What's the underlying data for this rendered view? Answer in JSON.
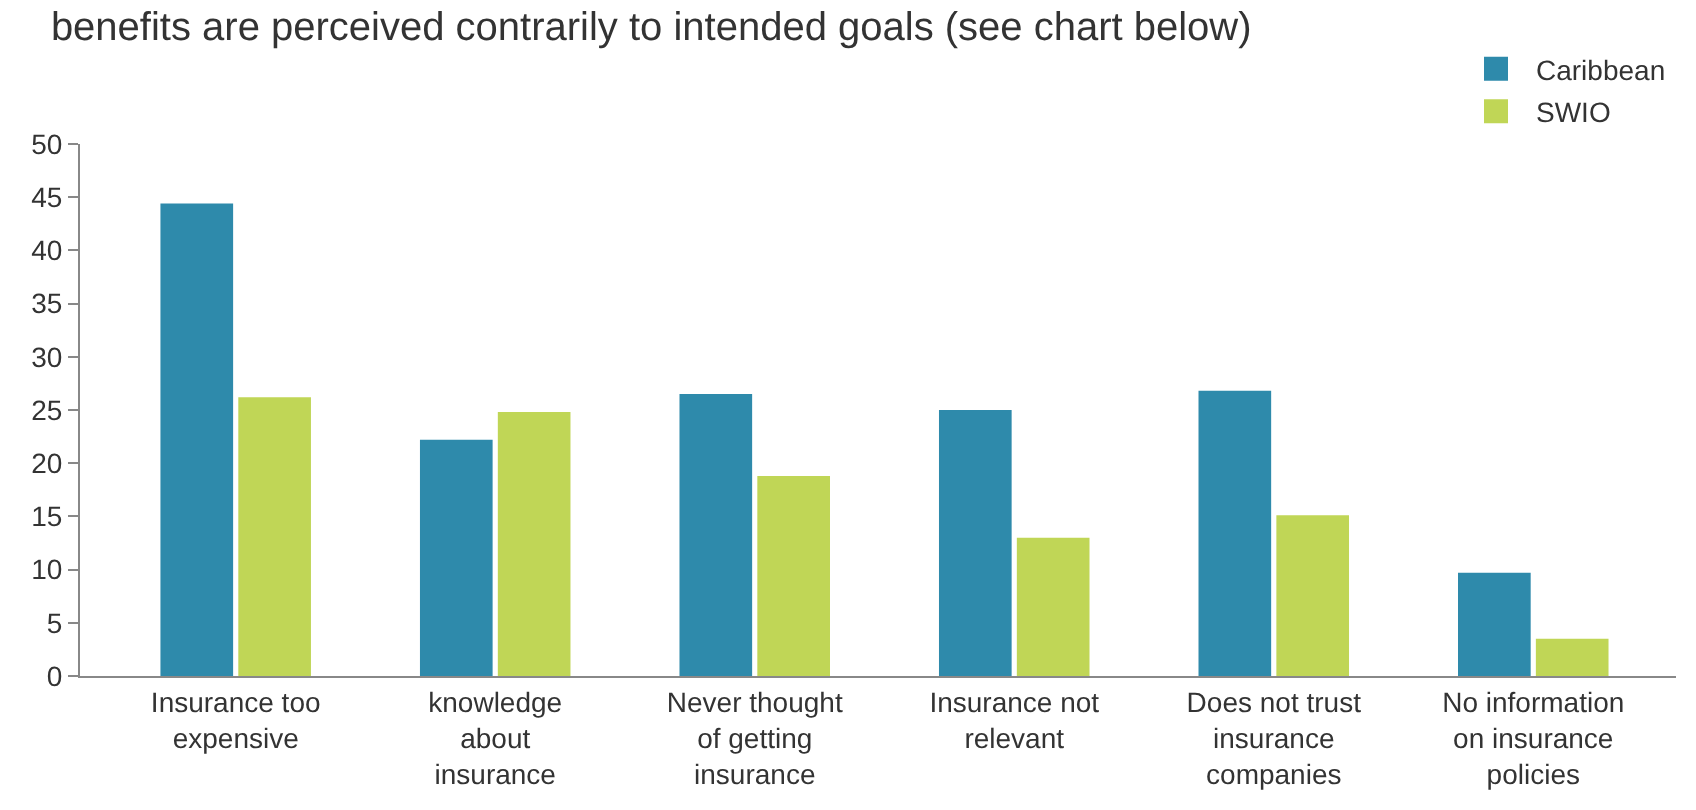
{
  "chart_data": {
    "type": "bar",
    "title": "benefits are perceived contrarily to intended goals (see chart below)",
    "categories": [
      "Insurance too expensive",
      "knowledge about insurance",
      "Never thought of getting insurance",
      "Insurance not relevant",
      "Does not trust insurance companies",
      "No information on insurance policies"
    ],
    "series": [
      {
        "name": "Caribbean",
        "color": "#2e8aab",
        "values": [
          44.4,
          22.2,
          26.5,
          25.0,
          26.8,
          9.7
        ]
      },
      {
        "name": "SWIO",
        "color": "#c0d656",
        "values": [
          26.2,
          24.8,
          18.8,
          13.0,
          15.1,
          3.5
        ]
      }
    ],
    "ylim": [
      0,
      50
    ],
    "yticks": [
      0,
      5,
      10,
      15,
      20,
      25,
      30,
      35,
      40,
      45,
      50
    ],
    "legend": "top right"
  }
}
